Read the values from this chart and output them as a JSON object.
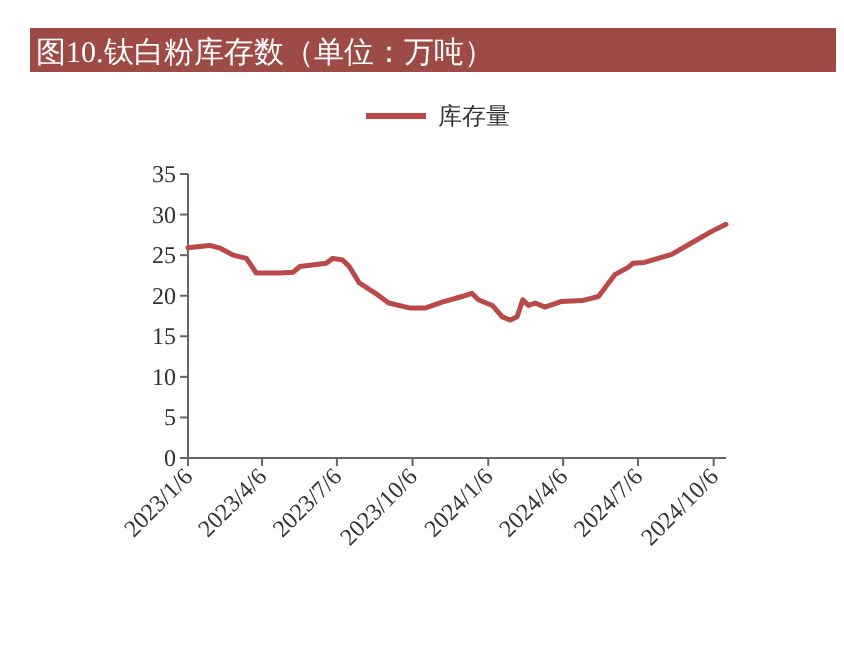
{
  "chart_data": {
    "type": "line",
    "title": "图10.钛白粉库存数（单位：万吨）",
    "x": [
      "2023-01-06",
      "2023-02-01",
      "2023-02-13",
      "2023-03-02",
      "2023-03-18",
      "2023-03-30",
      "2023-04-27",
      "2023-05-14",
      "2023-05-22",
      "2023-06-23",
      "2023-07-01",
      "2023-07-13",
      "2023-07-21",
      "2023-08-02",
      "2023-08-22",
      "2023-09-07",
      "2023-10-02",
      "2023-10-22",
      "2023-11-11",
      "2023-12-05",
      "2023-12-17",
      "2023-12-25",
      "2024-01-11",
      "2024-01-23",
      "2024-02-02",
      "2024-02-10",
      "2024-02-17",
      "2024-02-24",
      "2024-03-03",
      "2024-03-15",
      "2024-04-04",
      "2024-04-29",
      "2024-05-19",
      "2024-06-08",
      "2024-06-24",
      "2024-06-30",
      "2024-07-14",
      "2024-08-16",
      "2024-09-09",
      "2024-10-03",
      "2024-10-21"
    ],
    "series": [
      {
        "name": "库存量",
        "color": "#b94a48",
        "values": [
          25.9,
          26.2,
          25.9,
          25.0,
          24.6,
          22.8,
          22.8,
          22.9,
          23.6,
          24.0,
          24.6,
          24.4,
          23.6,
          21.6,
          20.3,
          19.1,
          18.5,
          18.5,
          19.2,
          19.9,
          20.3,
          19.5,
          18.8,
          17.4,
          17.0,
          17.4,
          19.5,
          18.8,
          19.1,
          18.6,
          19.3,
          19.4,
          19.9,
          22.6,
          23.5,
          24.0,
          24.1,
          25.1,
          26.5,
          27.9,
          28.8
        ]
      }
    ],
    "xlim": [
      "2023-01-06",
      "2024-10-21"
    ],
    "xticks": [
      {
        "value": "2023-01-06",
        "label": "2023/1/6"
      },
      {
        "value": "2023-04-06",
        "label": "2023/4/6"
      },
      {
        "value": "2023-07-06",
        "label": "2023/7/6"
      },
      {
        "value": "2023-10-06",
        "label": "2023/10/6"
      },
      {
        "value": "2024-01-06",
        "label": "2024/1/6"
      },
      {
        "value": "2024-04-06",
        "label": "2024/4/6"
      },
      {
        "value": "2024-07-06",
        "label": "2024/7/6"
      },
      {
        "value": "2024-10-06",
        "label": "2024/10/6"
      }
    ],
    "ylim": [
      0,
      35
    ],
    "yticks": [
      0,
      5,
      10,
      15,
      20,
      25,
      30,
      35
    ],
    "legend": "top",
    "grid": false,
    "marker": "none",
    "line_style": "solid"
  }
}
